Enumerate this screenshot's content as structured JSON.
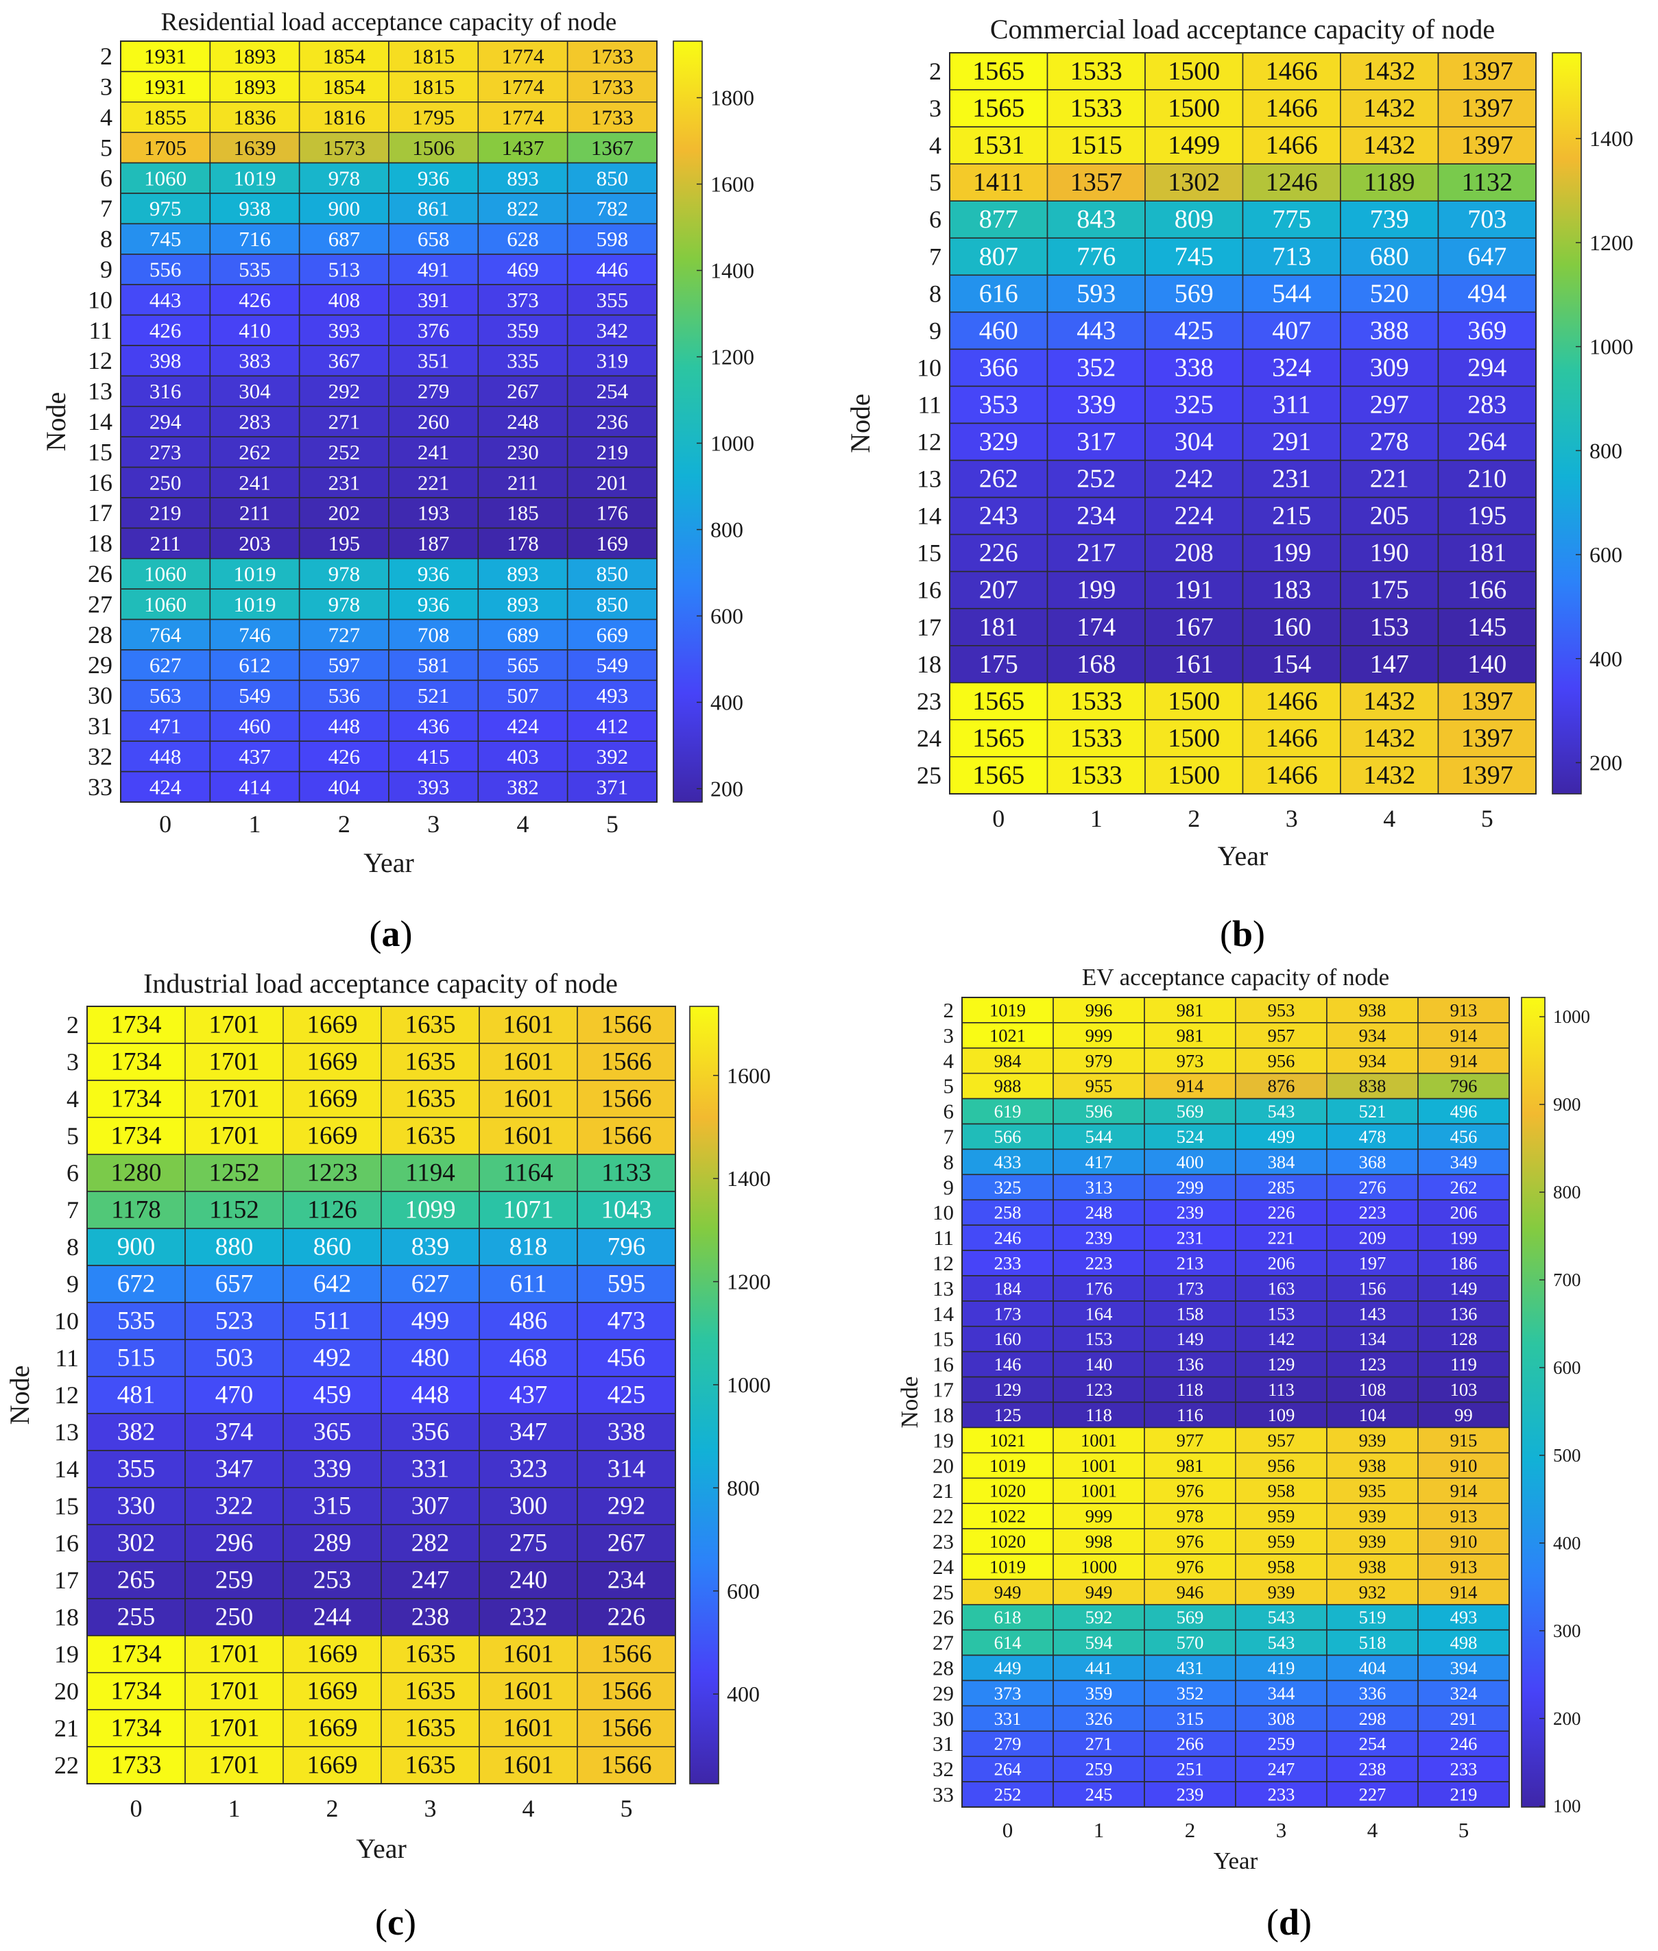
{
  "colormap": [
    "#3e26a8",
    "#4743f8",
    "#2c82f9",
    "#12b1d6",
    "#2cc5a1",
    "#84cb40",
    "#f2ba30",
    "#f9fb15"
  ],
  "chart_data": [
    {
      "type": "heatmap",
      "caption": "a",
      "title": "Residential load acceptance capacity of node",
      "xlabel": "Year",
      "ylabel": "Node",
      "x": [
        "0",
        "1",
        "2",
        "3",
        "4",
        "5"
      ],
      "y": [
        "2",
        "3",
        "4",
        "5",
        "6",
        "7",
        "8",
        "9",
        "10",
        "11",
        "12",
        "13",
        "14",
        "15",
        "16",
        "17",
        "18",
        "26",
        "27",
        "28",
        "29",
        "30",
        "31",
        "32",
        "33"
      ],
      "values": [
        [
          1931,
          1893,
          1854,
          1815,
          1774,
          1733
        ],
        [
          1931,
          1893,
          1854,
          1815,
          1774,
          1733
        ],
        [
          1855,
          1836,
          1816,
          1795,
          1774,
          1733
        ],
        [
          1705,
          1639,
          1573,
          1506,
          1437,
          1367
        ],
        [
          1060,
          1019,
          978,
          936,
          893,
          850
        ],
        [
          975,
          938,
          900,
          861,
          822,
          782
        ],
        [
          745,
          716,
          687,
          658,
          628,
          598
        ],
        [
          556,
          535,
          513,
          491,
          469,
          446
        ],
        [
          443,
          426,
          408,
          391,
          373,
          355
        ],
        [
          426,
          410,
          393,
          376,
          359,
          342
        ],
        [
          398,
          383,
          367,
          351,
          335,
          319
        ],
        [
          316,
          304,
          292,
          279,
          267,
          254
        ],
        [
          294,
          283,
          271,
          260,
          248,
          236
        ],
        [
          273,
          262,
          252,
          241,
          230,
          219
        ],
        [
          250,
          241,
          231,
          221,
          211,
          201
        ],
        [
          219,
          211,
          202,
          193,
          185,
          176
        ],
        [
          211,
          203,
          195,
          187,
          178,
          169
        ],
        [
          1060,
          1019,
          978,
          936,
          893,
          850
        ],
        [
          1060,
          1019,
          978,
          936,
          893,
          850
        ],
        [
          764,
          746,
          727,
          708,
          689,
          669
        ],
        [
          627,
          612,
          597,
          581,
          565,
          549
        ],
        [
          563,
          549,
          536,
          521,
          507,
          493
        ],
        [
          471,
          460,
          448,
          436,
          424,
          412
        ],
        [
          448,
          437,
          426,
          415,
          403,
          392
        ],
        [
          424,
          414,
          404,
          393,
          382,
          371
        ]
      ],
      "colorbar": {
        "range": [
          169,
          1931
        ],
        "ticks": [
          200,
          400,
          600,
          800,
          1000,
          1200,
          1400,
          1600,
          1800
        ]
      }
    },
    {
      "type": "heatmap",
      "caption": "b",
      "title": "Commercial load acceptance capacity of node",
      "xlabel": "Year",
      "ylabel": "Node",
      "x": [
        "0",
        "1",
        "2",
        "3",
        "4",
        "5"
      ],
      "y": [
        "2",
        "3",
        "4",
        "5",
        "6",
        "7",
        "8",
        "9",
        "10",
        "11",
        "12",
        "13",
        "14",
        "15",
        "16",
        "17",
        "18",
        "23",
        "24",
        "25"
      ],
      "values": [
        [
          1565,
          1533,
          1500,
          1466,
          1432,
          1397
        ],
        [
          1565,
          1533,
          1500,
          1466,
          1432,
          1397
        ],
        [
          1531,
          1515,
          1499,
          1466,
          1432,
          1397
        ],
        [
          1411,
          1357,
          1302,
          1246,
          1189,
          1132
        ],
        [
          877,
          843,
          809,
          775,
          739,
          703
        ],
        [
          807,
          776,
          745,
          713,
          680,
          647
        ],
        [
          616,
          593,
          569,
          544,
          520,
          494
        ],
        [
          460,
          443,
          425,
          407,
          388,
          369
        ],
        [
          366,
          352,
          338,
          324,
          309,
          294
        ],
        [
          353,
          339,
          325,
          311,
          297,
          283
        ],
        [
          329,
          317,
          304,
          291,
          278,
          264
        ],
        [
          262,
          252,
          242,
          231,
          221,
          210
        ],
        [
          243,
          234,
          224,
          215,
          205,
          195
        ],
        [
          226,
          217,
          208,
          199,
          190,
          181
        ],
        [
          207,
          199,
          191,
          183,
          175,
          166
        ],
        [
          181,
          174,
          167,
          160,
          153,
          145
        ],
        [
          175,
          168,
          161,
          154,
          147,
          140
        ],
        [
          1565,
          1533,
          1500,
          1466,
          1432,
          1397
        ],
        [
          1565,
          1533,
          1500,
          1466,
          1432,
          1397
        ],
        [
          1565,
          1533,
          1500,
          1466,
          1432,
          1397
        ]
      ],
      "colorbar": {
        "range": [
          140,
          1565
        ],
        "ticks": [
          200,
          400,
          600,
          800,
          1000,
          1200,
          1400
        ]
      }
    },
    {
      "type": "heatmap",
      "caption": "c",
      "title": "Industrial load acceptance capacity of node",
      "xlabel": "Year",
      "ylabel": "Node",
      "x": [
        "0",
        "1",
        "2",
        "3",
        "4",
        "5"
      ],
      "y": [
        "2",
        "3",
        "4",
        "5",
        "6",
        "7",
        "8",
        "9",
        "10",
        "11",
        "12",
        "13",
        "14",
        "15",
        "16",
        "17",
        "18",
        "19",
        "20",
        "21",
        "22"
      ],
      "values": [
        [
          1734,
          1701,
          1669,
          1635,
          1601,
          1566
        ],
        [
          1734,
          1701,
          1669,
          1635,
          1601,
          1566
        ],
        [
          1734,
          1701,
          1669,
          1635,
          1601,
          1566
        ],
        [
          1734,
          1701,
          1669,
          1635,
          1601,
          1566
        ],
        [
          1280,
          1252,
          1223,
          1194,
          1164,
          1133
        ],
        [
          1178,
          1152,
          1126,
          1099,
          1071,
          1043
        ],
        [
          900,
          880,
          860,
          839,
          818,
          796
        ],
        [
          672,
          657,
          642,
          627,
          611,
          595
        ],
        [
          535,
          523,
          511,
          499,
          486,
          473
        ],
        [
          515,
          503,
          492,
          480,
          468,
          456
        ],
        [
          481,
          470,
          459,
          448,
          437,
          425
        ],
        [
          382,
          374,
          365,
          356,
          347,
          338
        ],
        [
          355,
          347,
          339,
          331,
          323,
          314
        ],
        [
          330,
          322,
          315,
          307,
          300,
          292
        ],
        [
          302,
          296,
          289,
          282,
          275,
          267
        ],
        [
          265,
          259,
          253,
          247,
          240,
          234
        ],
        [
          255,
          250,
          244,
          238,
          232,
          226
        ],
        [
          1734,
          1701,
          1669,
          1635,
          1601,
          1566
        ],
        [
          1734,
          1701,
          1669,
          1635,
          1601,
          1566
        ],
        [
          1734,
          1701,
          1669,
          1635,
          1601,
          1566
        ],
        [
          1733,
          1701,
          1669,
          1635,
          1601,
          1566
        ]
      ],
      "colorbar": {
        "range": [
          226,
          1734
        ],
        "ticks": [
          400,
          600,
          800,
          1000,
          1200,
          1400,
          1600
        ]
      }
    },
    {
      "type": "heatmap",
      "caption": "d",
      "title": "EV acceptance capacity of node",
      "xlabel": "Year",
      "ylabel": "Node",
      "x": [
        "0",
        "1",
        "2",
        "3",
        "4",
        "5"
      ],
      "y": [
        "2",
        "3",
        "4",
        "5",
        "6",
        "7",
        "8",
        "9",
        "10",
        "11",
        "12",
        "13",
        "14",
        "15",
        "16",
        "17",
        "18",
        "19",
        "20",
        "21",
        "22",
        "23",
        "24",
        "25",
        "26",
        "27",
        "28",
        "29",
        "30",
        "31",
        "32",
        "33"
      ],
      "values": [
        [
          1019,
          996,
          981,
          953,
          938,
          913
        ],
        [
          1021,
          999,
          981,
          957,
          934,
          914
        ],
        [
          984,
          979,
          973,
          956,
          934,
          914
        ],
        [
          988,
          955,
          914,
          876,
          838,
          796
        ],
        [
          619,
          596,
          569,
          543,
          521,
          496
        ],
        [
          566,
          544,
          524,
          499,
          478,
          456
        ],
        [
          433,
          417,
          400,
          384,
          368,
          349
        ],
        [
          325,
          313,
          299,
          285,
          276,
          262
        ],
        [
          258,
          248,
          239,
          226,
          223,
          206
        ],
        [
          246,
          239,
          231,
          221,
          209,
          199
        ],
        [
          233,
          223,
          213,
          206,
          197,
          186
        ],
        [
          184,
          176,
          173,
          163,
          156,
          149
        ],
        [
          173,
          164,
          158,
          153,
          143,
          136
        ],
        [
          160,
          153,
          149,
          142,
          134,
          128
        ],
        [
          146,
          140,
          136,
          129,
          123,
          119
        ],
        [
          129,
          123,
          118,
          113,
          108,
          103
        ],
        [
          125,
          118,
          116,
          109,
          104,
          99
        ],
        [
          1021,
          1001,
          977,
          957,
          939,
          915
        ],
        [
          1019,
          1001,
          981,
          956,
          938,
          910
        ],
        [
          1020,
          1001,
          976,
          958,
          935,
          914
        ],
        [
          1022,
          999,
          978,
          959,
          939,
          913
        ],
        [
          1020,
          998,
          976,
          959,
          939,
          910
        ],
        [
          1019,
          1000,
          976,
          958,
          938,
          913
        ],
        [
          949,
          949,
          946,
          939,
          932,
          914
        ],
        [
          618,
          592,
          569,
          543,
          519,
          493
        ],
        [
          614,
          594,
          570,
          543,
          518,
          498
        ],
        [
          449,
          441,
          431,
          419,
          404,
          394
        ],
        [
          373,
          359,
          352,
          344,
          336,
          324
        ],
        [
          331,
          326,
          315,
          308,
          298,
          291
        ],
        [
          279,
          271,
          266,
          259,
          254,
          246
        ],
        [
          264,
          259,
          251,
          247,
          238,
          233
        ],
        [
          252,
          245,
          239,
          233,
          227,
          219
        ]
      ],
      "colorbar": {
        "range": [
          99,
          1022
        ],
        "ticks": [
          100,
          200,
          300,
          400,
          500,
          600,
          700,
          800,
          900,
          1000
        ]
      }
    }
  ]
}
